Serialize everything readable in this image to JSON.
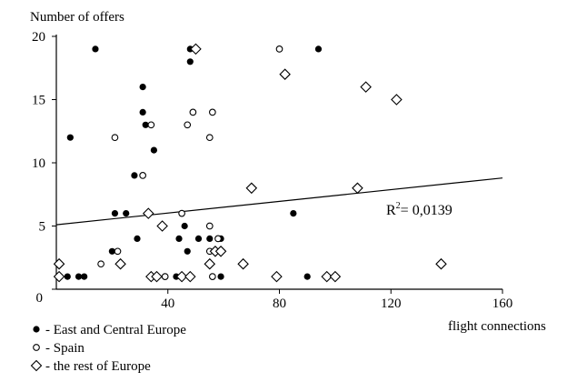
{
  "chart_data": {
    "type": "scatter",
    "title": "",
    "ylabel": "Number of offers",
    "xlabel": "flight connections",
    "xlim": [
      0,
      160
    ],
    "ylim": [
      0,
      20
    ],
    "x_ticks": [
      "0",
      "40",
      "80",
      "120",
      "160"
    ],
    "y_ticks": [
      "0",
      "5",
      "10",
      "15",
      "20"
    ],
    "grid": false,
    "legend_position": "bottom-left",
    "series": [
      {
        "name": "- East and Central Europe",
        "marker": "filled-circle",
        "color": "#000000",
        "points": [
          [
            4,
            1
          ],
          [
            5,
            12
          ],
          [
            8,
            1
          ],
          [
            10,
            1
          ],
          [
            14,
            19
          ],
          [
            20,
            3
          ],
          [
            21,
            6
          ],
          [
            25,
            6
          ],
          [
            28,
            9
          ],
          [
            29,
            4
          ],
          [
            31,
            14
          ],
          [
            31,
            16
          ],
          [
            32,
            13
          ],
          [
            35,
            11
          ],
          [
            36,
            1
          ],
          [
            39,
            1
          ],
          [
            43,
            1
          ],
          [
            44,
            4
          ],
          [
            45,
            1
          ],
          [
            46,
            5
          ],
          [
            47,
            3
          ],
          [
            48,
            19
          ],
          [
            48,
            18
          ],
          [
            51,
            4
          ],
          [
            55,
            4
          ],
          [
            59,
            4
          ],
          [
            59,
            1
          ],
          [
            85,
            6
          ],
          [
            90,
            1
          ],
          [
            94,
            19
          ]
        ]
      },
      {
        "name": "- Spain",
        "marker": "hollow-circle",
        "color": "#000000",
        "points": [
          [
            16,
            2
          ],
          [
            21,
            12
          ],
          [
            22,
            3
          ],
          [
            31,
            9
          ],
          [
            34,
            13
          ],
          [
            39,
            1
          ],
          [
            45,
            6
          ],
          [
            47,
            13
          ],
          [
            49,
            14
          ],
          [
            55,
            12
          ],
          [
            55,
            5
          ],
          [
            55,
            3
          ],
          [
            56,
            14
          ],
          [
            56,
            1
          ],
          [
            58,
            4
          ],
          [
            80,
            19
          ]
        ]
      },
      {
        "name": "- the rest of Europe",
        "marker": "hollow-diamond",
        "color": "#000000",
        "points": [
          [
            1,
            2
          ],
          [
            1,
            1
          ],
          [
            23,
            2
          ],
          [
            33,
            6
          ],
          [
            34,
            1
          ],
          [
            36,
            1
          ],
          [
            38,
            5
          ],
          [
            45,
            1
          ],
          [
            48,
            1
          ],
          [
            50,
            19
          ],
          [
            55,
            2
          ],
          [
            57,
            3
          ],
          [
            59,
            3
          ],
          [
            67,
            2
          ],
          [
            70,
            8
          ],
          [
            79,
            1
          ],
          [
            82,
            17
          ],
          [
            97,
            1
          ],
          [
            100,
            1
          ],
          [
            108,
            8
          ],
          [
            111,
            16
          ],
          [
            122,
            15
          ],
          [
            138,
            2
          ]
        ]
      }
    ],
    "trendline": {
      "type": "linear",
      "x": [
        0,
        160
      ],
      "y": [
        5.1,
        8.8
      ],
      "label_base": "R",
      "label_sup": "2",
      "label_rest": "= 0,0139"
    }
  }
}
